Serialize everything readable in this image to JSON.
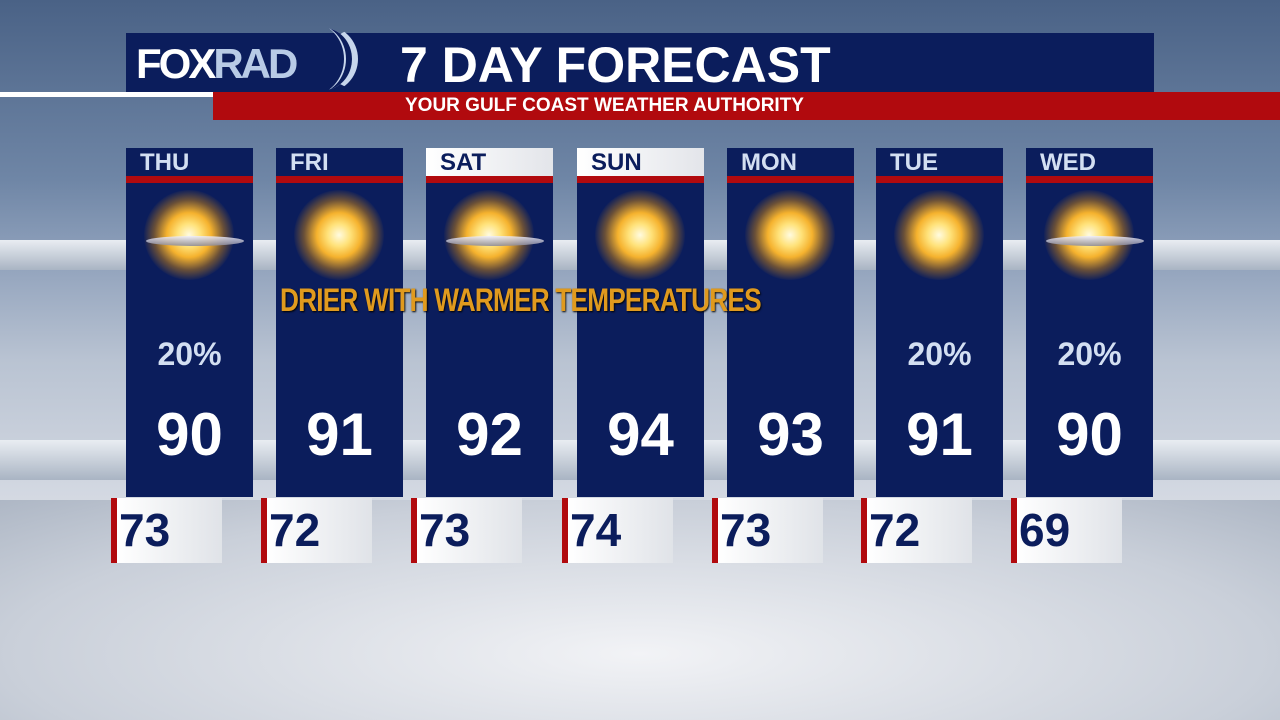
{
  "header": {
    "logo": "FOXRAD",
    "logo_parts": [
      "FOX",
      "RAD"
    ],
    "title": "7 DAY FORECAST",
    "subtitle": "YOUR GULF COAST WEATHER AUTHORITY"
  },
  "caption": "DRIER WITH WARMER TEMPERATURES",
  "days": [
    {
      "day": "THU",
      "icon": "partly-sunny-icon",
      "pop": "20%",
      "high": "90",
      "low": "73"
    },
    {
      "day": "FRI",
      "icon": "mostly-sunny-icon",
      "pop": "",
      "high": "91",
      "low": "72"
    },
    {
      "day": "SAT",
      "icon": "partly-sunny-icon",
      "pop": "",
      "high": "92",
      "low": "73"
    },
    {
      "day": "SUN",
      "icon": "mostly-sunny-icon",
      "pop": "",
      "high": "94",
      "low": "74"
    },
    {
      "day": "MON",
      "icon": "sunny-icon",
      "pop": "",
      "high": "93",
      "low": "73"
    },
    {
      "day": "TUE",
      "icon": "mostly-sunny-icon",
      "pop": "20%",
      "high": "91",
      "low": "72"
    },
    {
      "day": "WED",
      "icon": "partly-sunny-icon",
      "pop": "20%",
      "high": "90",
      "low": "69"
    }
  ],
  "colors": {
    "navy": "#0b1d5c",
    "red": "#b10a0e",
    "caption": "#e09a1e"
  }
}
